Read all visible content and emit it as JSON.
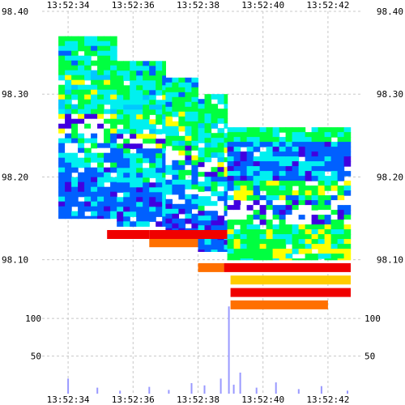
{
  "chart_data": {
    "type": "heatmap",
    "x_ticks": [
      "13:52:34",
      "13:52:36",
      "13:52:38",
      "13:52:40",
      "13:52:42"
    ],
    "xlim": [
      "13:52:33.2",
      "13:52:43"
    ],
    "price_ticks": [
      "98.40",
      "98.30",
      "98.20",
      "98.10"
    ],
    "price_ylim": [
      98.04,
      98.4
    ],
    "volume_ticks": [
      "100",
      "50"
    ],
    "volume_ylim": [
      0,
      112
    ],
    "color_scale": [
      "#f00000",
      "#ff7000",
      "#ffff00",
      "#00ff40",
      "#00f0f0",
      "#0060ff",
      "#4000e0",
      "#ffffff"
    ],
    "heatmap_segments": [
      {
        "t_start": "13:52:33.7",
        "t_end": "13:52:35.5",
        "price_top": 98.37,
        "price_bottom": 98.15,
        "palette": "upper"
      },
      {
        "t_start": "13:52:35.5",
        "t_end": "13:52:37.0",
        "price_top": 98.34,
        "price_bottom": 98.14,
        "palette": "upper"
      },
      {
        "t_start": "13:52:37.0",
        "t_end": "13:52:38.0",
        "price_top": 98.32,
        "price_bottom": 98.13,
        "palette": "upper"
      },
      {
        "t_start": "13:52:38.0",
        "t_end": "13:52:38.9",
        "price_top": 98.3,
        "price_bottom": 98.11,
        "palette": "upper"
      },
      {
        "t_start": "13:52:38.9",
        "t_end": "13:52:42.7",
        "price_top": 98.26,
        "price_bottom": 98.1,
        "palette": "lower"
      }
    ],
    "sell_side_bands": [
      {
        "t_start": "13:52:35.2",
        "t_end": "13:52:36.5",
        "price": 98.13,
        "color": "#f00000"
      },
      {
        "t_start": "13:52:36.5",
        "t_end": "13:52:38.0",
        "price": 98.12,
        "color": "#ff7000"
      },
      {
        "t_start": "13:52:36.5",
        "t_end": "13:52:38.9",
        "price": 98.13,
        "color": "#f00000"
      },
      {
        "t_start": "13:52:38.0",
        "t_end": "13:52:38.8",
        "price": 98.09,
        "color": "#ff7000"
      },
      {
        "t_start": "13:52:38.8",
        "t_end": "13:52:42.7",
        "price": 98.09,
        "color": "#f00000"
      },
      {
        "t_start": "13:52:39.0",
        "t_end": "13:52:42.7",
        "price": 98.075,
        "color": "#ffcc00"
      },
      {
        "t_start": "13:52:39.0",
        "t_end": "13:52:42.7",
        "price": 98.06,
        "color": "#f00000"
      },
      {
        "t_start": "13:52:39.0",
        "t_end": "13:52:42.0",
        "price": 98.045,
        "color": "#ff7000"
      }
    ],
    "volume_series": {
      "times": [
        "13:52:34.0",
        "13:52:34.9",
        "13:52:35.6",
        "13:52:36.5",
        "13:52:37.1",
        "13:52:37.8",
        "13:52:38.2",
        "13:52:38.7",
        "13:52:38.95",
        "13:52:39.1",
        "13:52:39.3",
        "13:52:39.8",
        "13:52:40.4",
        "13:52:41.1",
        "13:52:41.8",
        "13:52:42.6"
      ],
      "values": [
        20,
        8,
        4,
        9,
        5,
        14,
        11,
        20,
        116,
        12,
        28,
        8,
        15,
        6,
        10,
        4
      ]
    }
  }
}
